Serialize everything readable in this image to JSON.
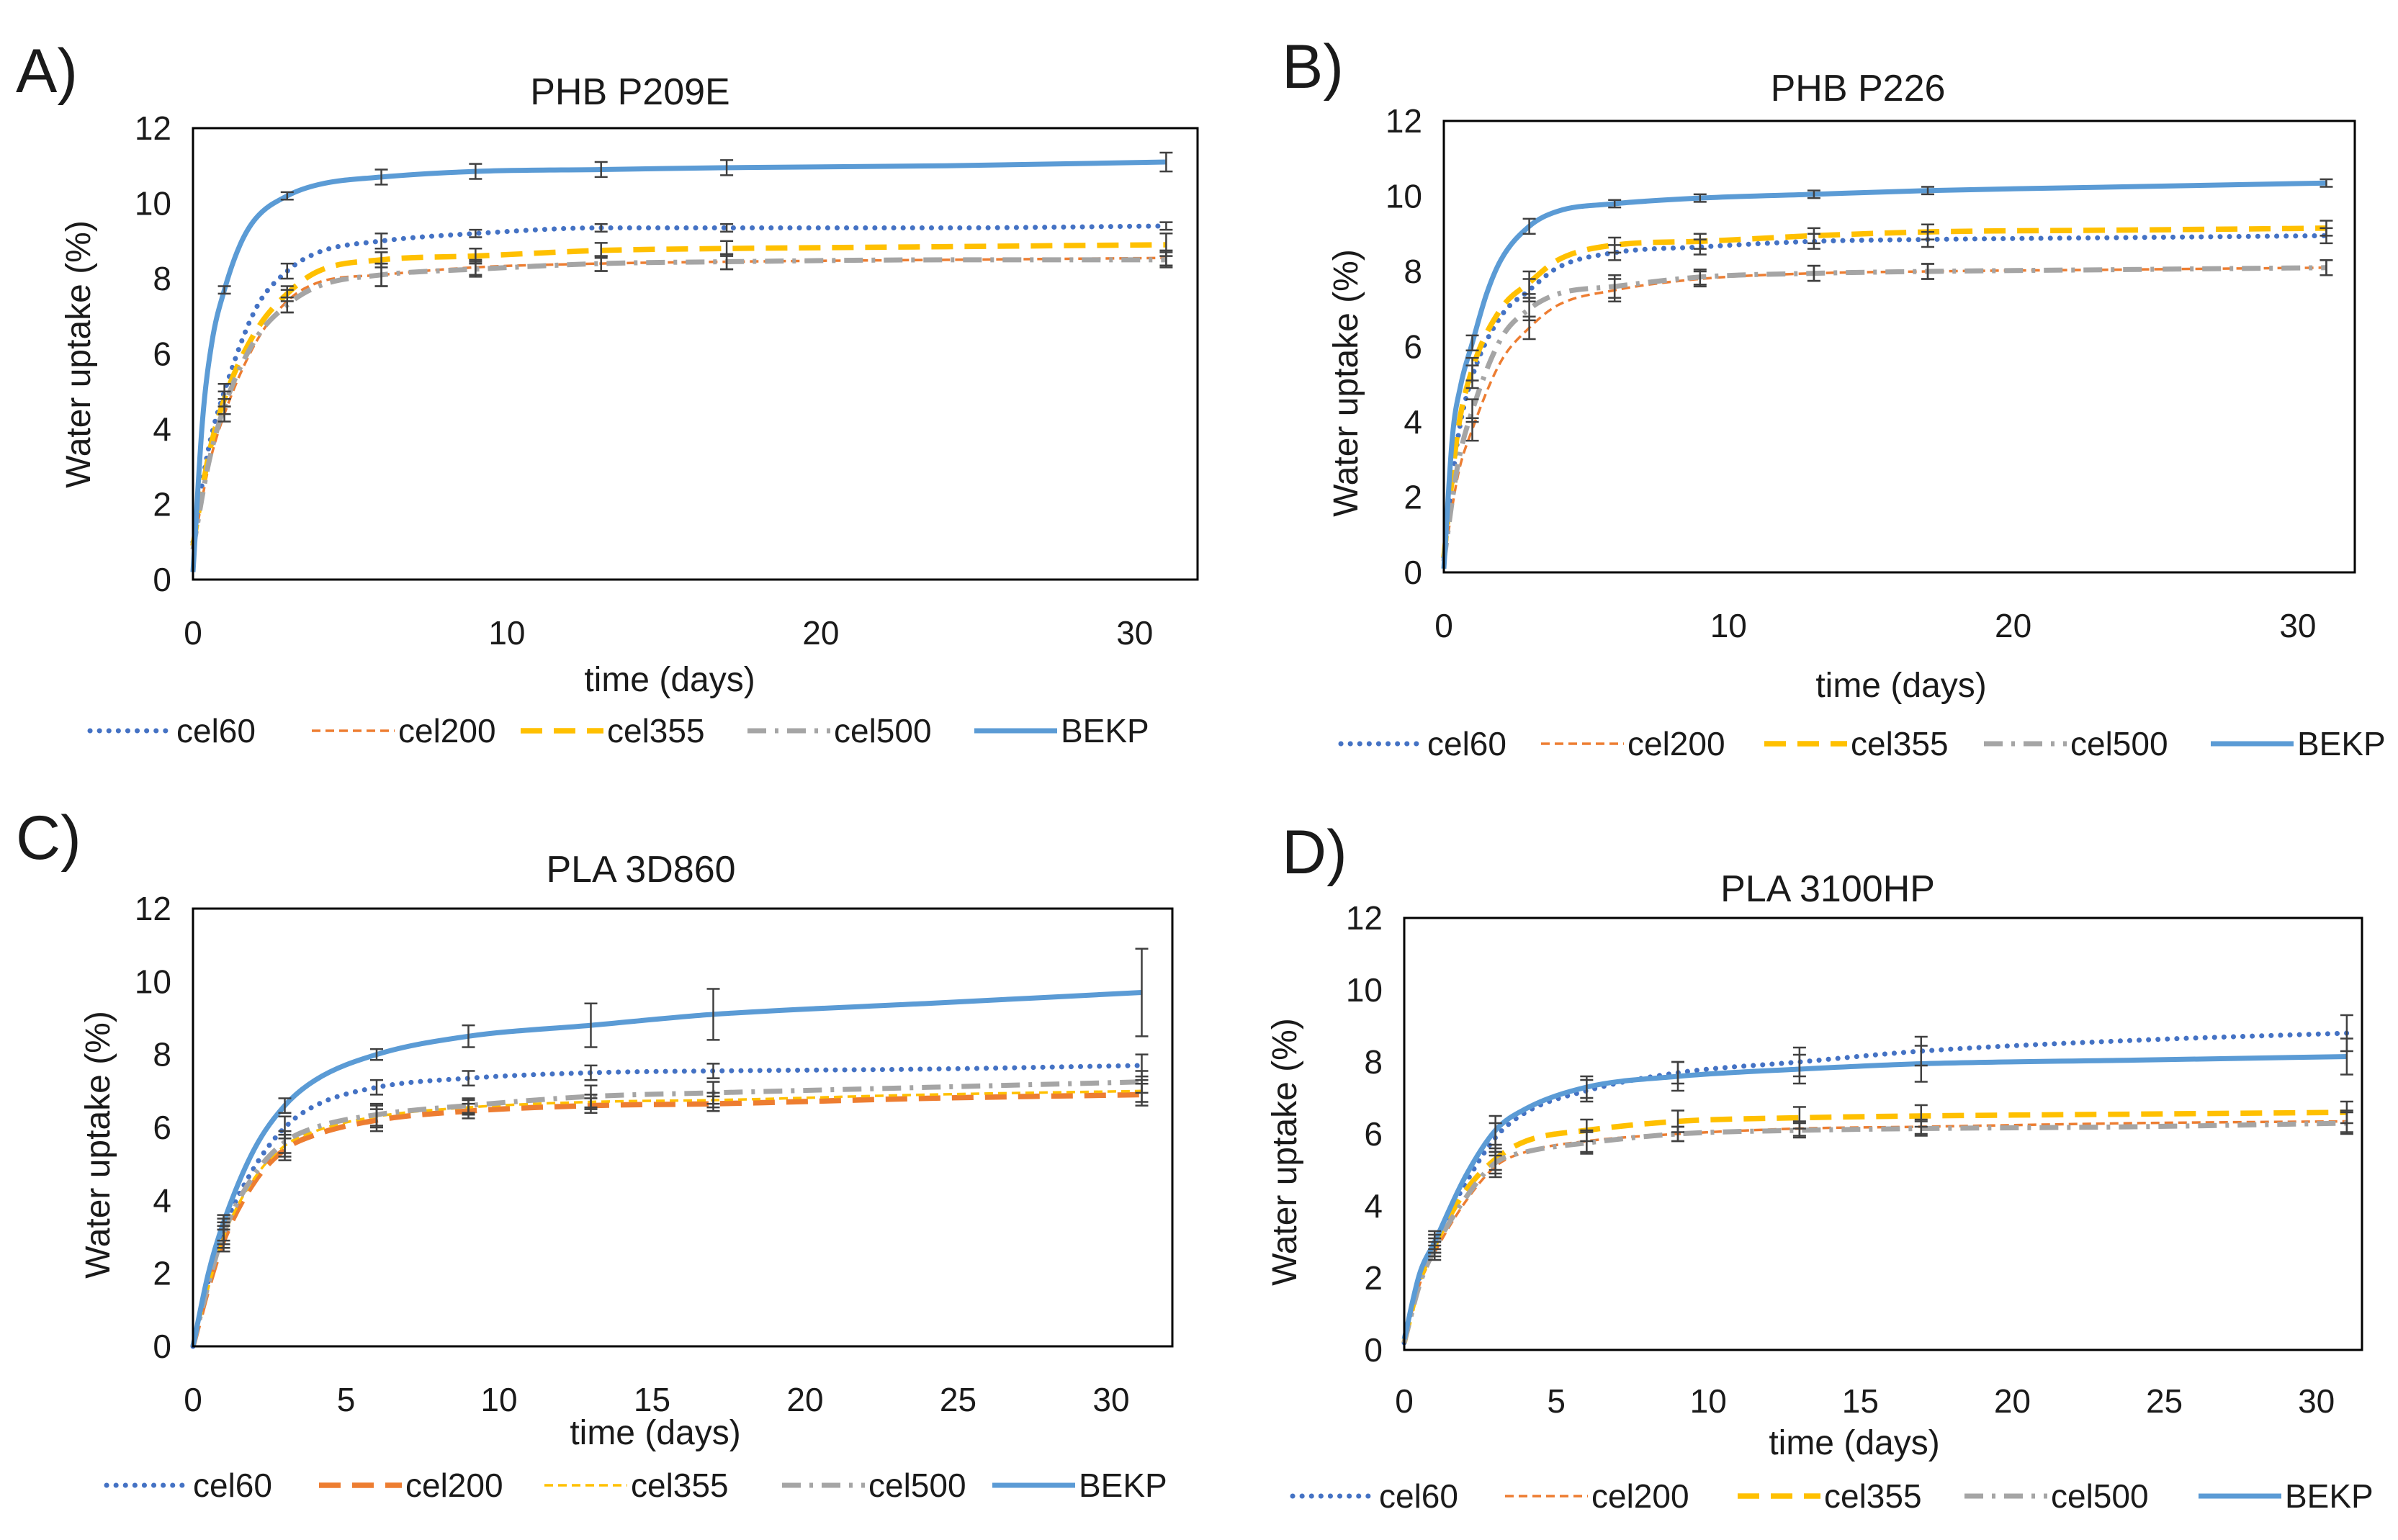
{
  "figure": {
    "legend_colors": {
      "cel60": "#4472c4",
      "cel200": "#ed7d31",
      "cel355": "#ffc000",
      "cel500": "#a5a5a5",
      "BEKP": "#5b9bd5"
    }
  },
  "chart_data": [
    {
      "panel": "A)",
      "type": "line",
      "title": "PHB P209E",
      "xlabel": "time (days)",
      "ylabel": "Water uptake (%)",
      "xlim": [
        0,
        32
      ],
      "ylim": [
        0,
        12
      ],
      "xticks": [
        0,
        10,
        20,
        30
      ],
      "yticks": [
        0,
        2,
        4,
        6,
        8,
        10,
        12
      ],
      "legend": [
        "cel60",
        "cel200",
        "cel355",
        "cel500",
        "BEKP"
      ],
      "series": [
        {
          "name": "cel60",
          "x": [
            0,
            0.5,
            1,
            2,
            3,
            4,
            6,
            9,
            13,
            17,
            24,
            31
          ],
          "y": [
            1.0,
            3.5,
            5.0,
            7.2,
            8.2,
            8.7,
            9.0,
            9.2,
            9.35,
            9.35,
            9.35,
            9.4
          ],
          "err": [
            null,
            null,
            0.2,
            null,
            0.2,
            null,
            0.2,
            0.1,
            0.1,
            0.1,
            null,
            0.1
          ],
          "style": "dotted"
        },
        {
          "name": "cel200",
          "x": [
            0,
            0.5,
            1,
            2,
            3,
            4,
            6,
            9,
            13,
            17,
            24,
            31
          ],
          "y": [
            0.8,
            3.0,
            4.4,
            6.3,
            7.4,
            7.9,
            8.1,
            8.3,
            8.4,
            8.45,
            8.5,
            8.55
          ],
          "err": [
            null,
            null,
            0.2,
            null,
            0.3,
            null,
            0.3,
            0.2,
            0.2,
            0.2,
            null,
            0.2
          ],
          "style": "dashed-thin"
        },
        {
          "name": "cel355",
          "x": [
            0,
            0.5,
            1,
            2,
            3,
            4,
            6,
            9,
            13,
            17,
            24,
            31
          ],
          "y": [
            0.9,
            3.3,
            4.8,
            6.6,
            7.6,
            8.2,
            8.5,
            8.6,
            8.75,
            8.8,
            8.85,
            8.9
          ],
          "err": [
            null,
            null,
            0.2,
            null,
            0.2,
            null,
            0.2,
            0.2,
            0.2,
            0.2,
            null,
            0.3
          ],
          "style": "dashed-thick"
        },
        {
          "name": "cel500",
          "x": [
            0,
            0.5,
            1,
            2,
            3,
            4,
            6,
            9,
            13,
            17,
            24,
            31
          ],
          "y": [
            0.8,
            3.1,
            4.6,
            6.4,
            7.3,
            7.8,
            8.1,
            8.25,
            8.4,
            8.45,
            8.5,
            8.5
          ],
          "err": [
            null,
            null,
            0.2,
            null,
            0.2,
            null,
            0.3,
            0.2,
            0.2,
            0.2,
            null,
            0.2
          ],
          "style": "dashdot"
        },
        {
          "name": "BEKP",
          "x": [
            0,
            0.3,
            0.6,
            1,
            1.5,
            2,
            3,
            4,
            6,
            9,
            13,
            17,
            24,
            31
          ],
          "y": [
            0.2,
            4.2,
            6.3,
            7.7,
            8.9,
            9.6,
            10.2,
            10.5,
            10.7,
            10.85,
            10.9,
            10.95,
            11.0,
            11.1
          ],
          "err": [
            null,
            null,
            null,
            0.1,
            null,
            null,
            0.1,
            null,
            0.2,
            0.2,
            0.2,
            0.2,
            null,
            0.25
          ],
          "style": "solid"
        }
      ]
    },
    {
      "panel": "B)",
      "type": "line",
      "title": "PHB P226",
      "xlabel": "time (days)",
      "ylabel": "Water uptake (%)",
      "xlim": [
        0,
        32
      ],
      "ylim": [
        0,
        12
      ],
      "xticks": [
        0,
        10,
        20,
        30
      ],
      "yticks": [
        0,
        2,
        4,
        6,
        8,
        10,
        12
      ],
      "legend": [
        "cel60",
        "cel200",
        "cel355",
        "cel500",
        "BEKP"
      ],
      "series": [
        {
          "name": "cel60",
          "x": [
            0,
            0.5,
            1,
            2,
            3,
            4,
            6,
            9,
            13,
            17,
            24,
            31
          ],
          "y": [
            0.4,
            3.6,
            5.2,
            6.8,
            7.5,
            8.1,
            8.5,
            8.65,
            8.8,
            8.85,
            8.9,
            8.95
          ],
          "err": [
            null,
            null,
            0.3,
            null,
            0.3,
            null,
            0.2,
            0.2,
            0.2,
            0.2,
            null,
            0.2
          ],
          "style": "dotted"
        },
        {
          "name": "cel200",
          "x": [
            0,
            0.5,
            1,
            2,
            3,
            4,
            6,
            9,
            13,
            17,
            24,
            31
          ],
          "y": [
            0.3,
            2.6,
            3.8,
            5.6,
            6.5,
            7.1,
            7.5,
            7.8,
            7.95,
            8.0,
            8.05,
            8.1
          ],
          "err": [
            null,
            null,
            0.3,
            null,
            0.3,
            null,
            0.3,
            0.2,
            0.2,
            0.2,
            null,
            0.2
          ],
          "style": "dashed-thin"
        },
        {
          "name": "cel355",
          "x": [
            0,
            0.5,
            1,
            2,
            3,
            4,
            6,
            9,
            13,
            17,
            24,
            31
          ],
          "y": [
            0.4,
            3.8,
            5.4,
            7.0,
            7.7,
            8.3,
            8.7,
            8.8,
            8.95,
            9.05,
            9.1,
            9.15
          ],
          "err": [
            null,
            null,
            0.3,
            null,
            0.3,
            null,
            0.2,
            0.2,
            0.2,
            0.2,
            null,
            0.2
          ],
          "style": "dashed-thick"
        },
        {
          "name": "cel500",
          "x": [
            0,
            0.5,
            1,
            2,
            3,
            4,
            6,
            9,
            13,
            17,
            24,
            31
          ],
          "y": [
            0.3,
            2.9,
            4.3,
            6.2,
            7.0,
            7.4,
            7.6,
            7.85,
            7.95,
            8.0,
            8.05,
            8.1
          ],
          "err": [
            null,
            null,
            0.3,
            null,
            0.3,
            null,
            0.3,
            0.2,
            0.2,
            0.2,
            null,
            0.2
          ],
          "style": "dashdot"
        },
        {
          "name": "BEKP",
          "x": [
            0,
            0.3,
            0.6,
            1,
            1.5,
            2,
            3,
            4,
            6,
            9,
            13,
            17,
            24,
            31
          ],
          "y": [
            0.1,
            3.6,
            5.0,
            6.1,
            7.4,
            8.3,
            9.2,
            9.6,
            9.8,
            9.95,
            10.05,
            10.15,
            10.25,
            10.35
          ],
          "err": [
            null,
            null,
            null,
            0.2,
            null,
            null,
            0.2,
            null,
            0.1,
            0.1,
            0.1,
            0.1,
            null,
            0.1
          ],
          "style": "solid"
        }
      ]
    },
    {
      "panel": "C)",
      "type": "line",
      "title": "PLA 3D860",
      "xlabel": "time (days)",
      "ylabel": "Water uptake (%)",
      "xlim": [
        0,
        32
      ],
      "ylim": [
        0,
        12
      ],
      "xticks": [
        0,
        5,
        10,
        15,
        20,
        25,
        30
      ],
      "yticks": [
        0,
        2,
        4,
        6,
        8,
        10,
        12
      ],
      "legend": [
        "cel60",
        "cel200",
        "cel355",
        "cel500",
        "BEKP"
      ],
      "series": [
        {
          "name": "cel60",
          "x": [
            0,
            0.5,
            1,
            2,
            3,
            4,
            6,
            9,
            13,
            17,
            24,
            31
          ],
          "y": [
            0,
            1.8,
            3.2,
            4.9,
            6.0,
            6.6,
            7.1,
            7.35,
            7.5,
            7.55,
            7.6,
            7.7
          ],
          "err": [
            null,
            null,
            0.3,
            null,
            0.3,
            null,
            0.2,
            0.2,
            0.2,
            0.2,
            null,
            0.3
          ],
          "style": "dotted"
        },
        {
          "name": "cel200",
          "x": [
            0,
            0.5,
            1,
            2,
            3,
            4,
            6,
            9,
            13,
            17,
            24,
            31
          ],
          "y": [
            0,
            1.6,
            2.9,
            4.5,
            5.4,
            5.8,
            6.2,
            6.45,
            6.6,
            6.65,
            6.8,
            6.9
          ],
          "err": [
            null,
            null,
            0.3,
            null,
            0.3,
            null,
            0.3,
            0.2,
            0.2,
            0.2,
            null,
            0.3
          ],
          "style": "dashed-thick"
        },
        {
          "name": "cel355",
          "x": [
            0,
            0.5,
            1,
            2,
            3,
            4,
            6,
            9,
            13,
            17,
            24,
            31
          ],
          "y": [
            0,
            1.6,
            3.0,
            4.6,
            5.5,
            5.9,
            6.3,
            6.55,
            6.7,
            6.75,
            6.9,
            7.0
          ],
          "err": [
            null,
            null,
            0.3,
            null,
            0.3,
            null,
            0.3,
            0.2,
            0.2,
            0.2,
            null,
            0.3
          ],
          "style": "dashed-thin"
        },
        {
          "name": "cel500",
          "x": [
            0,
            0.5,
            1,
            2,
            3,
            4,
            6,
            9,
            13,
            17,
            24,
            31
          ],
          "y": [
            0,
            1.7,
            3.1,
            4.7,
            5.6,
            6.0,
            6.35,
            6.6,
            6.85,
            6.95,
            7.1,
            7.25
          ],
          "err": [
            null,
            null,
            0.3,
            null,
            0.3,
            null,
            0.3,
            0.2,
            0.3,
            0.3,
            null,
            0.3
          ],
          "style": "dashdot"
        },
        {
          "name": "BEKP",
          "x": [
            0,
            0.5,
            1,
            2,
            3,
            4,
            6,
            9,
            13,
            17,
            24,
            31
          ],
          "y": [
            0,
            2.0,
            3.4,
            5.4,
            6.6,
            7.3,
            8.0,
            8.5,
            8.8,
            9.1,
            9.4,
            9.7
          ],
          "err": [
            null,
            null,
            0.2,
            null,
            0.2,
            null,
            0.15,
            0.3,
            0.6,
            0.7,
            null,
            1.2
          ],
          "style": "solid"
        }
      ]
    },
    {
      "panel": "D)",
      "type": "line",
      "title": "PLA 3100HP",
      "xlabel": "time (days)",
      "ylabel": "Water uptake (%)",
      "xlim": [
        0,
        31.5
      ],
      "ylim": [
        0,
        12
      ],
      "xticks": [
        0,
        5,
        10,
        15,
        20,
        25,
        30
      ],
      "yticks": [
        0,
        2,
        4,
        6,
        8,
        10,
        12
      ],
      "legend": [
        "cel60",
        "cel200",
        "cel355",
        "cel500",
        "BEKP"
      ],
      "series": [
        {
          "name": "cel60",
          "x": [
            0,
            0.5,
            1,
            2,
            3,
            4,
            6,
            9,
            13,
            17,
            24,
            31
          ],
          "y": [
            0.2,
            2.0,
            3.0,
            4.6,
            5.9,
            6.6,
            7.2,
            7.7,
            8.0,
            8.3,
            8.6,
            8.8
          ],
          "err": [
            null,
            null,
            0.3,
            null,
            0.4,
            null,
            0.3,
            0.3,
            0.4,
            0.4,
            null,
            0.5
          ],
          "style": "dotted"
        },
        {
          "name": "cel200",
          "x": [
            0,
            0.5,
            1,
            2,
            3,
            4,
            6,
            9,
            13,
            17,
            24,
            31
          ],
          "y": [
            0.2,
            1.8,
            2.7,
            4.1,
            5.1,
            5.5,
            5.8,
            6.0,
            6.15,
            6.2,
            6.3,
            6.35
          ],
          "err": [
            null,
            null,
            0.2,
            null,
            0.3,
            null,
            0.3,
            0.2,
            0.2,
            0.2,
            null,
            0.3
          ],
          "style": "dashed-thin"
        },
        {
          "name": "cel355",
          "x": [
            0,
            0.5,
            1,
            2,
            3,
            4,
            6,
            9,
            13,
            17,
            24,
            31
          ],
          "y": [
            0.2,
            1.9,
            2.9,
            4.4,
            5.3,
            5.8,
            6.1,
            6.35,
            6.45,
            6.5,
            6.55,
            6.6
          ],
          "err": [
            null,
            null,
            0.2,
            null,
            0.3,
            null,
            0.3,
            0.3,
            0.3,
            0.3,
            null,
            0.3
          ],
          "style": "dashed-thick"
        },
        {
          "name": "cel500",
          "x": [
            0,
            0.5,
            1,
            2,
            3,
            4,
            6,
            9,
            13,
            17,
            24,
            31
          ],
          "y": [
            0.2,
            1.8,
            2.8,
            4.2,
            5.2,
            5.5,
            5.75,
            6.0,
            6.1,
            6.15,
            6.2,
            6.3
          ],
          "err": [
            null,
            null,
            0.2,
            null,
            0.3,
            null,
            0.3,
            0.2,
            0.2,
            0.2,
            null,
            0.3
          ],
          "style": "dashdot"
        },
        {
          "name": "BEKP",
          "x": [
            0,
            0.5,
            1,
            2,
            3,
            4,
            6,
            9,
            13,
            17,
            24,
            31
          ],
          "y": [
            0.3,
            2.1,
            3.0,
            4.8,
            6.1,
            6.7,
            7.3,
            7.6,
            7.8,
            7.95,
            8.05,
            8.15
          ],
          "err": [
            null,
            null,
            0.2,
            null,
            0.4,
            null,
            0.3,
            0.4,
            0.4,
            0.5,
            null,
            0.5
          ],
          "style": "solid"
        }
      ]
    }
  ]
}
